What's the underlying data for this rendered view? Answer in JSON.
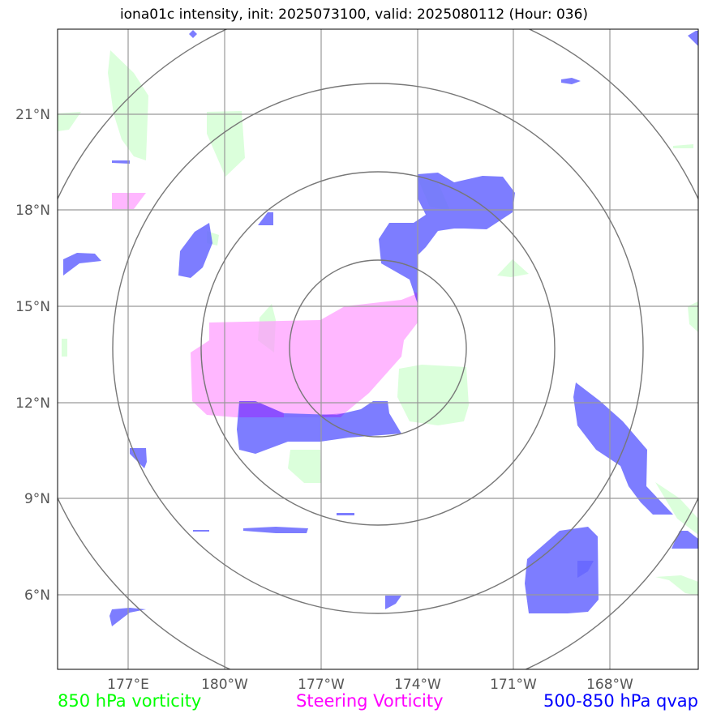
{
  "title": "iona01c intensity, init: 2025073100, valid: 2025080112 (Hour: 036)",
  "lon_ticks": [
    "177°E",
    "180°W",
    "177°W",
    "174°W",
    "171°W",
    "168°W"
  ],
  "lat_ticks": [
    "21°N",
    "18°N",
    "15°N",
    "12°N",
    "9°N",
    "6°N"
  ],
  "legend": {
    "vort850": "850 hPa vorticity",
    "steering": "Steering Vorticity",
    "qvap": "500-850 hPa qvap"
  },
  "colors": {
    "vort850": "#ccffcc",
    "steering": "#ff99ff",
    "qvap": "#6666ff",
    "grid": "#999999",
    "rings": "#777777"
  }
}
